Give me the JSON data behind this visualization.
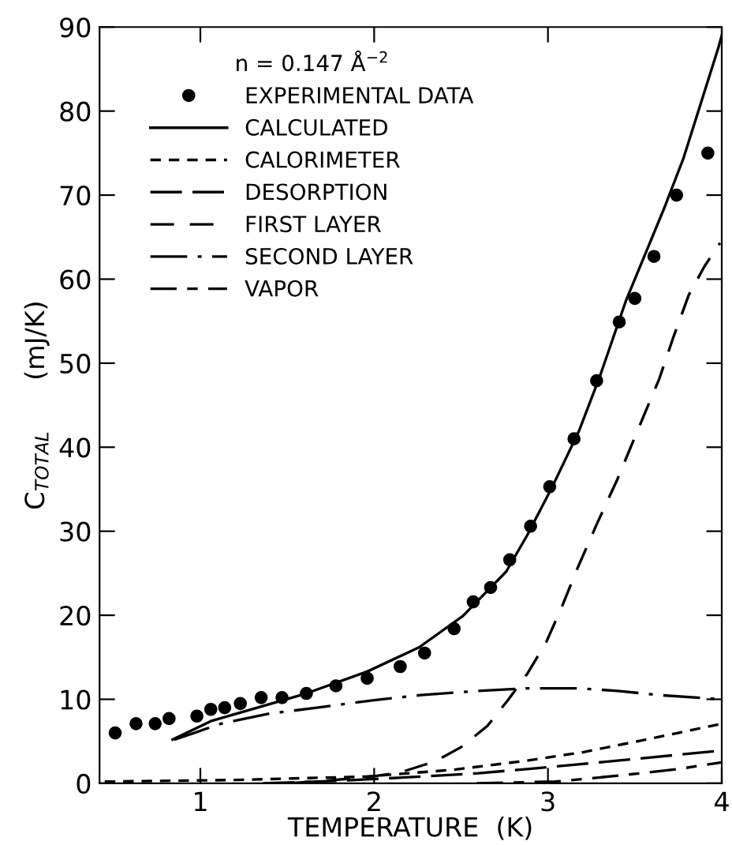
{
  "chart_data": {
    "type": "line",
    "xlabel": "TEMPERATURE  (K)",
    "ylabel": "C$_{TOTAL}$      (mJ/K)",
    "legend_title": "n = 0.147 Å$^{−2}$",
    "xlim": [
      0.42,
      4
    ],
    "ylim": [
      0,
      90
    ],
    "xticks": [
      1,
      2,
      3,
      4
    ],
    "yticks": [
      0,
      10,
      20,
      30,
      40,
      50,
      60,
      70,
      80,
      90
    ],
    "grid": false,
    "legend": "top left",
    "series": [
      {
        "name": "EXPERIMENTAL DATA",
        "type": "scatter",
        "marker": "circle",
        "color": "#000000",
        "x": [
          0.51,
          0.63,
          0.74,
          0.82,
          0.98,
          1.06,
          1.14,
          1.23,
          1.35,
          1.47,
          1.61,
          1.78,
          1.96,
          2.15,
          2.29,
          2.46,
          2.57,
          2.67,
          2.78,
          2.9,
          3.01,
          3.15,
          3.28,
          3.41,
          3.5,
          3.61,
          3.74,
          3.92
        ],
        "values": [
          6.0,
          7.1,
          7.1,
          7.7,
          8.0,
          8.8,
          9.0,
          9.5,
          10.2,
          10.2,
          10.7,
          11.6,
          12.5,
          13.9,
          15.5,
          18.4,
          21.6,
          23.3,
          26.6,
          30.6,
          35.3,
          41.0,
          47.9,
          54.9,
          57.7,
          62.7,
          70.0,
          75.0
        ]
      },
      {
        "name": "CALCULATED",
        "line_style": "solid",
        "color": "#000000",
        "x": [
          0.84,
          1.06,
          1.61,
          1.96,
          2.26,
          2.51,
          2.76,
          2.88,
          3.03,
          3.18,
          3.3,
          3.45,
          3.55,
          3.67,
          3.78,
          3.98,
          4.0
        ],
        "values": [
          5.2,
          7.4,
          10.7,
          13.3,
          16.2,
          19.9,
          25.2,
          29.5,
          35.5,
          42.0,
          48.5,
          57.5,
          62.5,
          68.5,
          74.4,
          87.5,
          89.0
        ]
      },
      {
        "name": "CALORIMETER",
        "line_style": "dashed",
        "color": "#000000",
        "x": [
          0.45,
          1.2,
          1.95,
          2.45,
          2.88,
          3.2,
          3.49,
          3.75,
          4.0
        ],
        "values": [
          0.2,
          0.4,
          0.8,
          1.6,
          2.7,
          3.7,
          4.9,
          6.0,
          7.1
        ]
      },
      {
        "name": "DESORPTION",
        "line_style": "longdash",
        "color": "#000000",
        "x": [
          1.36,
          1.8,
          2.27,
          2.6,
          2.88,
          3.2,
          3.5,
          3.75,
          4.0
        ],
        "values": [
          0.0,
          0.3,
          0.8,
          1.2,
          1.7,
          2.3,
          2.9,
          3.4,
          3.9
        ]
      },
      {
        "name": "FIRST LAYER",
        "line_style": "dashed2",
        "color": "#000000",
        "x": [
          1.5,
          1.65,
          1.95,
          2.15,
          2.35,
          2.5,
          2.65,
          2.77,
          2.88,
          2.99,
          3.08,
          3.17,
          3.28,
          3.4,
          3.52,
          3.64,
          3.72,
          3.81,
          3.9,
          3.99
        ],
        "values": [
          0.0,
          0.2,
          0.7,
          1.3,
          2.6,
          4.3,
          6.8,
          9.9,
          13.0,
          16.8,
          21.0,
          25.6,
          30.8,
          36.2,
          42.2,
          48.1,
          53.0,
          58.1,
          61.5,
          64.3
        ]
      },
      {
        "name": "SECOND LAYER",
        "line_style": "dashdot",
        "color": "#000000",
        "x": [
          0.85,
          1.12,
          1.4,
          1.67,
          2.0,
          2.27,
          2.6,
          2.88,
          3.18,
          3.4,
          3.64,
          4.0
        ],
        "values": [
          5.2,
          7.1,
          8.3,
          9.0,
          9.9,
          10.5,
          11.0,
          11.3,
          11.3,
          11.0,
          10.5,
          10.0
        ]
      },
      {
        "name": "VAPOR",
        "line_style": "dashed3",
        "color": "#000000",
        "x": [
          2.59,
          2.8,
          3.04,
          3.25,
          3.49,
          3.75,
          4.0
        ],
        "values": [
          0.0,
          0.1,
          0.2,
          0.6,
          1.1,
          1.7,
          2.5
        ]
      }
    ]
  }
}
